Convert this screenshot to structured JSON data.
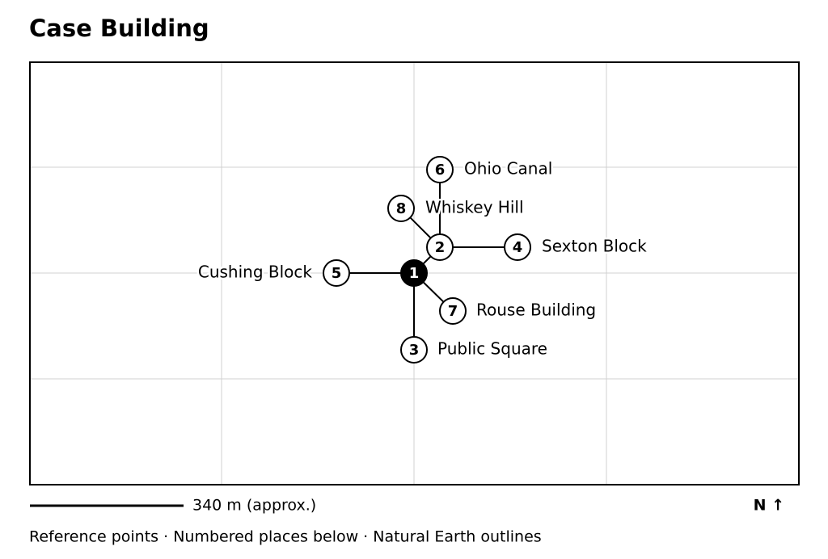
{
  "header": {
    "title": "Case Building"
  },
  "nodes": [
    {
      "number": 1
    },
    {
      "number": 2
    },
    {
      "number": 3,
      "label": "Public Square"
    },
    {
      "number": 4,
      "label": "Sexton Block"
    },
    {
      "number": 5,
      "label": "Cushing Block"
    },
    {
      "number": 6,
      "label": "Ohio Canal"
    },
    {
      "number": 7,
      "label": "Rouse Building"
    },
    {
      "number": 8,
      "label": "Whiskey Hill"
    }
  ],
  "scale": {
    "label": "340 m (approx.)"
  },
  "north": "N ↑",
  "footer": "Reference points · Numbered places below · Natural Earth outlines"
}
